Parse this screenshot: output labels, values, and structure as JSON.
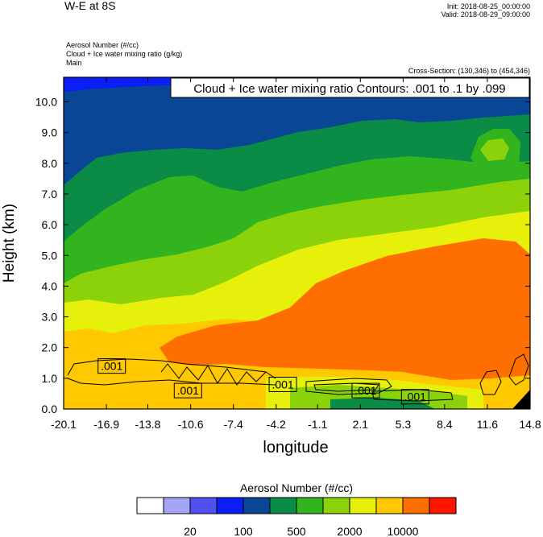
{
  "header": {
    "title": "W-E at 8S",
    "init": "Init: 2018-08-25_00:00:00",
    "valid": "Valid: 2018-08-29_09:00:00",
    "field1": "Aerosol Number   (#/cc)",
    "field2": "Cloud + Ice water mixing ratio   (g/kg)",
    "field3": "Main",
    "cross_section": "Cross-Section: (130,346) to (454,346)"
  },
  "chart_data": {
    "type": "heatmap",
    "title": "Cloud + Ice water mixing ratio Contours: .001 to .1 by .099",
    "xlabel": "longitude",
    "ylabel": "Height (km)",
    "x_ticks": [
      "-20.1",
      "-16.9",
      "-13.8",
      "-10.6",
      "-7.4",
      "-4.2",
      "-1.1",
      "2.1",
      "5.3",
      "8.4",
      "11.6",
      "14.8"
    ],
    "y_ticks": [
      "0.0",
      "1.0",
      "2.0",
      "3.0",
      "4.0",
      "5.0",
      "6.0",
      "7.0",
      "8.0",
      "9.0",
      "10.0"
    ],
    "xlim": [
      -20.1,
      14.8
    ],
    "ylim": [
      0.0,
      10.8
    ],
    "contour_labels": [
      ".001",
      ".001",
      ".001",
      ".001",
      ".001"
    ],
    "contour_level_values": [
      0.001,
      0.001,
      0.001,
      0.001,
      0.001
    ],
    "contour_label_positions": [
      {
        "x": -16.5,
        "y": 1.4
      },
      {
        "x": -10.8,
        "y": 0.6
      },
      {
        "x": -3.7,
        "y": 0.8
      },
      {
        "x": 2.5,
        "y": 0.6
      },
      {
        "x": 6.2,
        "y": 0.4
      }
    ],
    "colorbar": {
      "title": "Aerosol Number  (#/cc)",
      "colors": [
        "#ffffff",
        "#a5a5f5",
        "#5050f0",
        "#0a1ef5",
        "#0a4696",
        "#0a8c46",
        "#32b41e",
        "#8cd20a",
        "#e6f00a",
        "#ffc800",
        "#ff6e00",
        "#ff1400"
      ],
      "labels": [
        "20",
        "100",
        "500",
        "2000",
        "10000"
      ]
    }
  }
}
